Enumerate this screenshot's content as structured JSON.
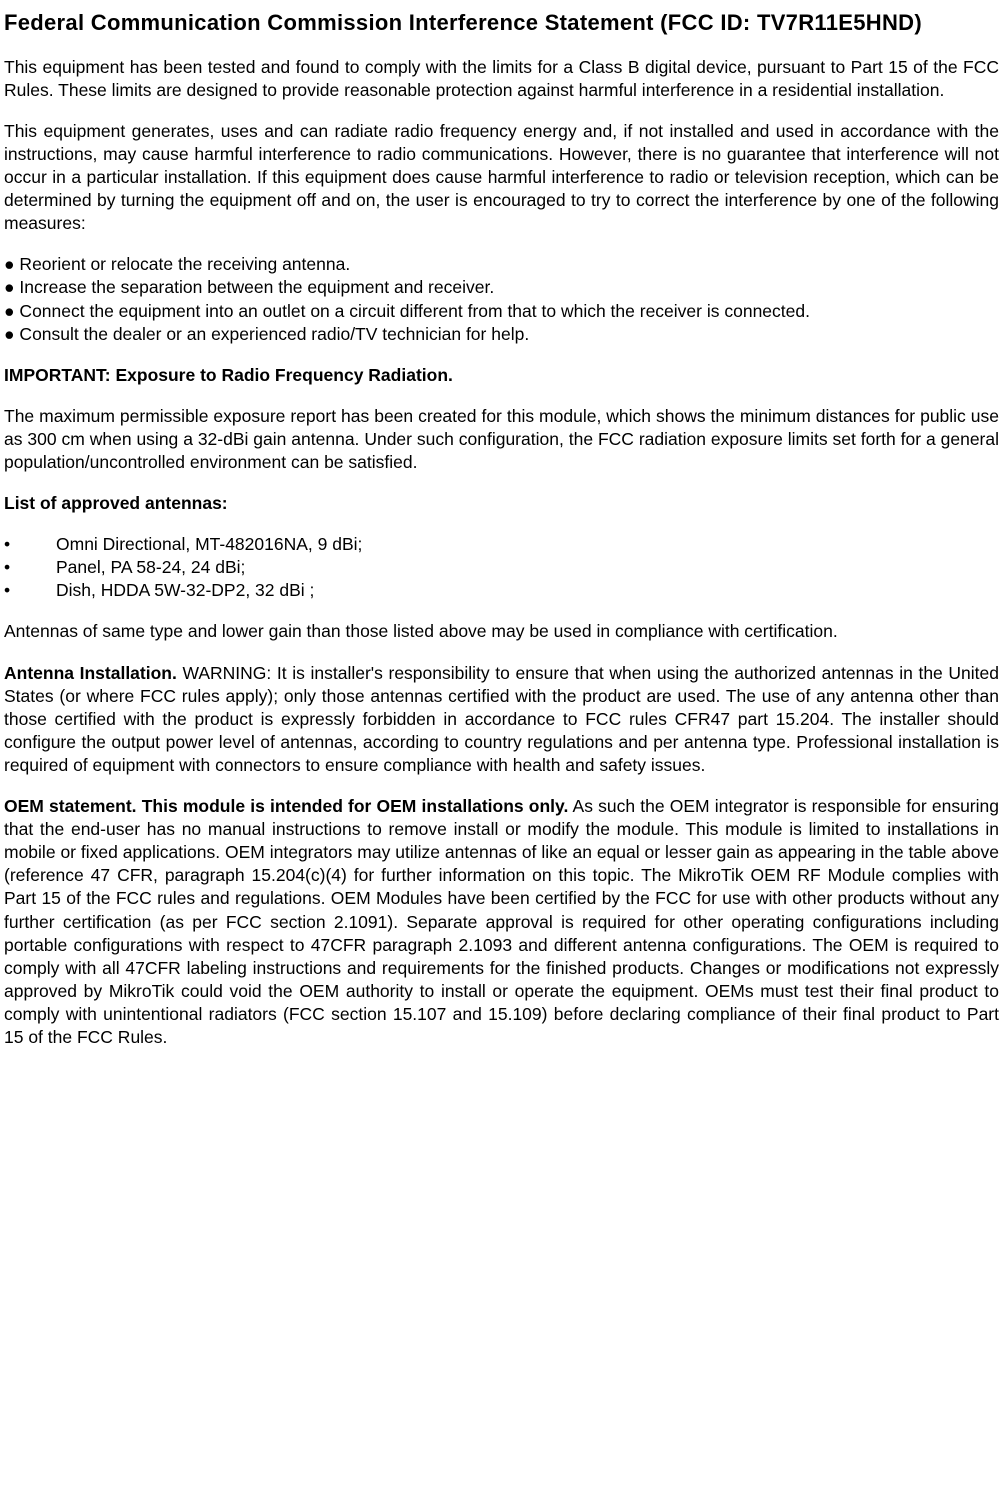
{
  "title": "Federal Communication Commission Interference Statement (FCC ID: TV7R11E5HND)",
  "p1": "This equipment has been tested and found to comply with the limits for a Class B digital device, pursuant to Part 15 of the FCC Rules. These limits are designed to provide reasonable protection against harmful interference in a residential installation.",
  "p2": "This equipment generates, uses and can radiate radio frequency energy and, if not installed and used in accordance with the instructions, may cause harmful interference to radio communications. However, there is no guarantee that interference will not occur in a particular installation. If this equipment does cause harmful interference to radio or television reception, which can be determined by turning the equipment off and on, the user is encouraged to try to correct the interference by one of the following measures:",
  "bullets": [
    "● Reorient or relocate the receiving antenna.",
    "● Increase the separation between the equipment and receiver.",
    "● Connect the equipment into an outlet on a circuit different from that to which the receiver is connected.",
    "● Consult the dealer or an experienced radio/TV technician for help."
  ],
  "important_heading": "IMPORTANT: Exposure to Radio Frequency Radiation.",
  "p3": "The maximum permissible exposure report has been created for this module, which shows the minimum distances for public use as 300 cm when using a 32-dBi gain antenna.  Under such configuration, the FCC radiation exposure limits set forth for a general population/uncontrolled environment can be satisfied.",
  "antennas_heading": "List of approved antennas:",
  "antennas": [
    "Omni Directional, MT-482016NA, 9 dBi;",
    "Panel, PA 58-24, 24 dBi;",
    "Dish, HDDA 5W-32-DP2, 32 dBi ;"
  ],
  "p4": "Antennas of same type and lower gain than those listed above may be used in compliance with certification.",
  "antenna_install_bold": "Antenna Installation.",
  "antenna_install_body": " WARNING: It is installer's responsibility to ensure that when using the authorized antennas in the United States (or where FCC rules apply); only those antennas certified with the product are used. The use of any antenna other than those certified with the product is expressly forbidden in accordance to FCC rules CFR47 part 15.204. The installer should configure the output power level of antennas, according to country regulations and per antenna type. Professional installation is required of equipment with connectors to ensure compliance with health and safety issues.",
  "oem_bold": "OEM statement.   This module is intended for OEM installations only.",
  "oem_body": "  As such the OEM integrator is responsible for ensuring that the end-user has no manual instructions to remove install or modify the module.  This module is limited to installations in mobile or fixed applications.  OEM integrators may utilize antennas of like an equal or lesser gain as appearing in the table above (reference 47 CFR, paragraph 15.204(c)(4) for further information on this topic.  The MikroTik OEM RF Module complies with Part 15 of the FCC rules and regulations. OEM Modules have been certified by the FCC for use with other products without any further certification (as per FCC section 2.1091).  Separate approval is required for other operating configurations including portable configurations with respect to 47CFR paragraph 2.1093 and different antenna configurations.  The OEM is required to comply with all 47CFR labeling instructions and requirements for the finished products.  Changes or modifications not expressly approved by MikroTik could void the OEM authority to install or operate the equipment. OEMs must test their final product to comply with unintentional radiators (FCC section 15.107 and 15.109) before declaring compliance of their final product to Part 15 of the FCC Rules."
}
